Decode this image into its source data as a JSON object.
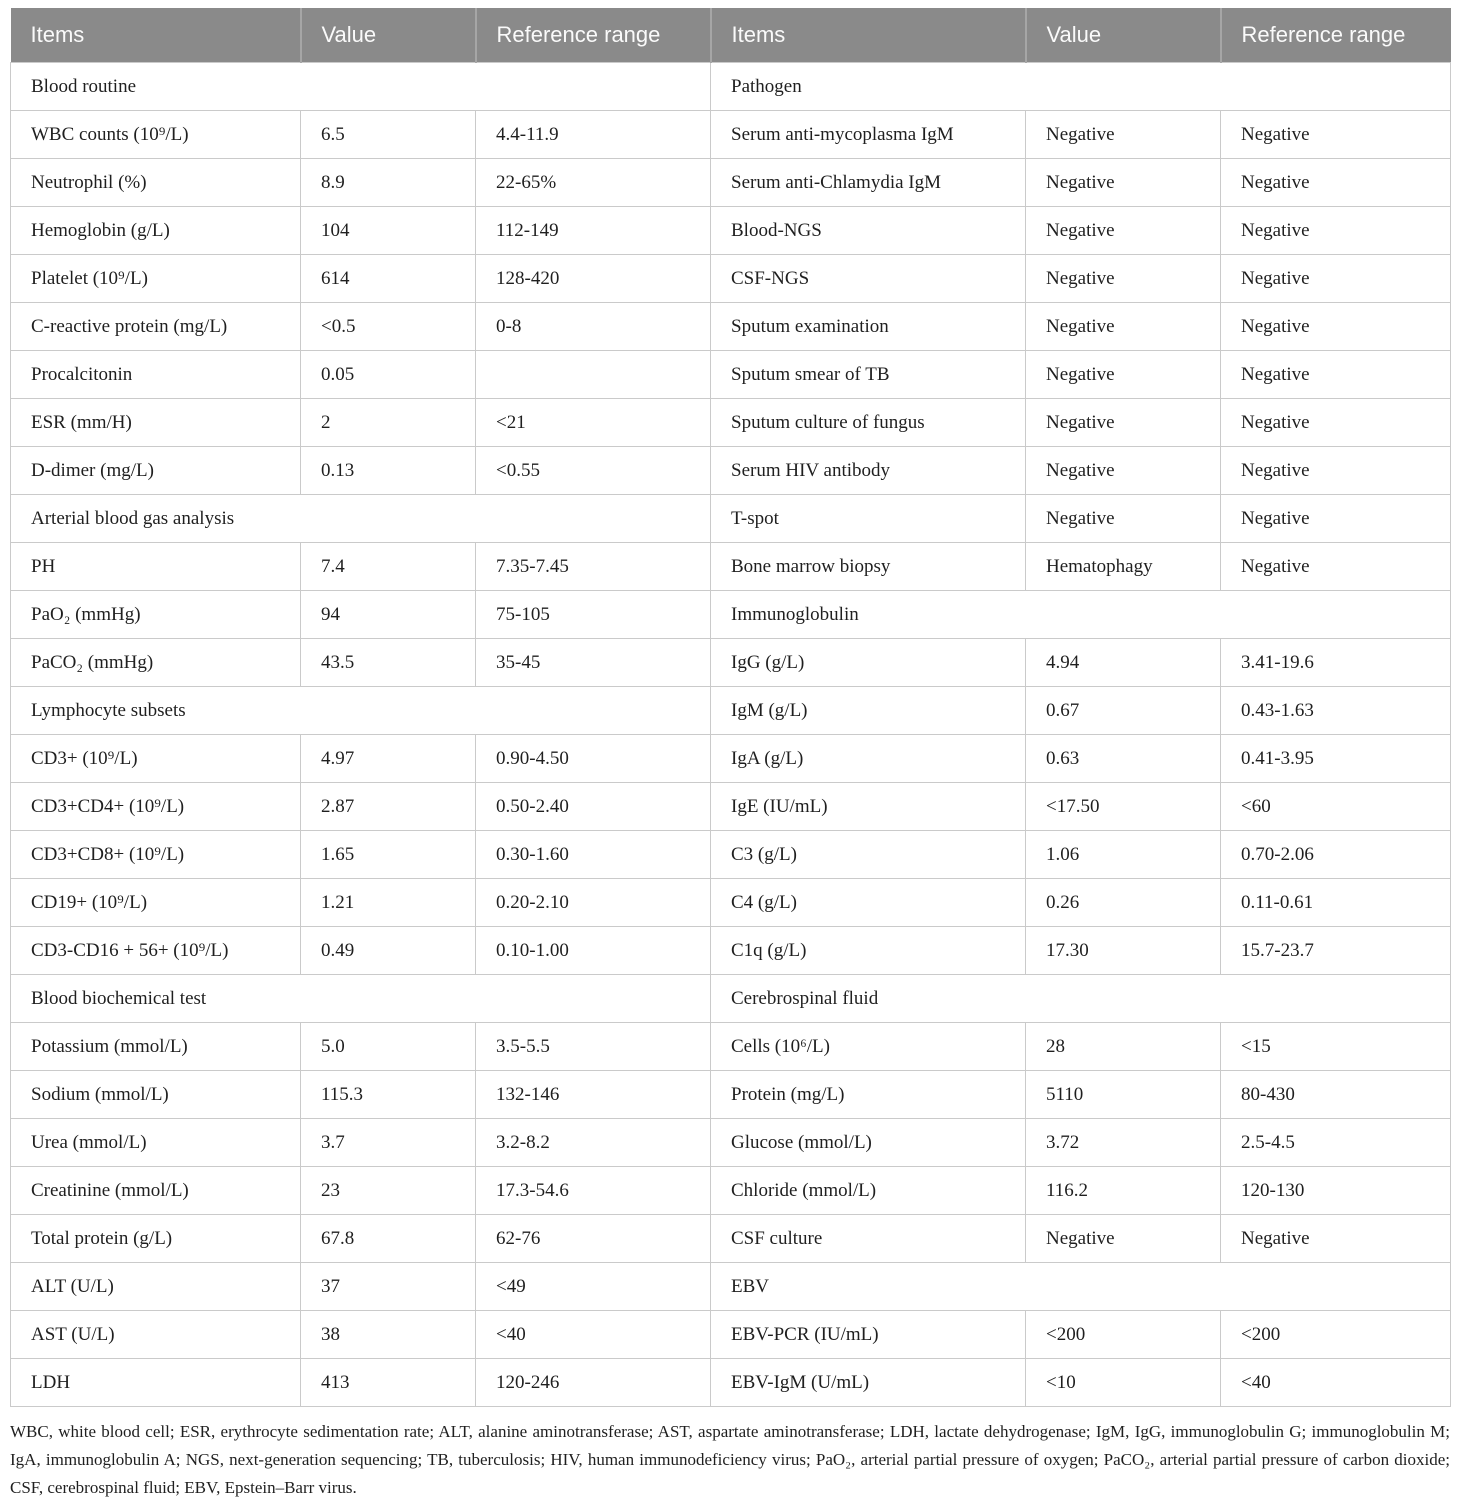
{
  "colors": {
    "header_bg": "#8a8a8a",
    "header_text": "#fafafa",
    "header_sep": "#a6a6a6",
    "grid_line": "#cacaca",
    "body_text": "#1f1f1f"
  },
  "header": {
    "items_left": "Items",
    "value_left": "Value",
    "ref_left": "Reference range",
    "items_right": "Items",
    "value_right": "Value",
    "ref_right": "Reference range"
  },
  "rows": [
    {
      "left": {
        "section": "Blood routine"
      },
      "right": {
        "section": "Pathogen"
      }
    },
    {
      "left": {
        "item": "WBC counts (10⁹/L)",
        "value": "6.5",
        "ref": "4.4-11.9"
      },
      "right": {
        "item": "Serum anti-mycoplasma IgM",
        "value": "Negative",
        "ref": "Negative"
      }
    },
    {
      "left": {
        "item": "Neutrophil (%)",
        "value": "8.9",
        "ref": "22-65%"
      },
      "right": {
        "item": "Serum anti-Chlamydia IgM",
        "value": "Negative",
        "ref": "Negative"
      }
    },
    {
      "left": {
        "item": "Hemoglobin (g/L)",
        "value": "104",
        "ref": "112-149"
      },
      "right": {
        "item": "Blood-NGS",
        "value": "Negative",
        "ref": "Negative"
      }
    },
    {
      "left": {
        "item": "Platelet (10⁹/L)",
        "value": "614",
        "ref": "128-420"
      },
      "right": {
        "item": "CSF-NGS",
        "value": "Negative",
        "ref": "Negative"
      }
    },
    {
      "left": {
        "item": "C-reactive protein (mg/L)",
        "value": "<0.5",
        "ref": "0-8"
      },
      "right": {
        "item": "Sputum examination",
        "value": "Negative",
        "ref": "Negative"
      }
    },
    {
      "left": {
        "item": "Procalcitonin",
        "value": "0.05",
        "ref": ""
      },
      "right": {
        "item": "Sputum smear of TB",
        "value": "Negative",
        "ref": "Negative"
      }
    },
    {
      "left": {
        "item": "ESR (mm/H)",
        "value": "2",
        "ref": "<21"
      },
      "right": {
        "item": "Sputum culture of fungus",
        "value": "Negative",
        "ref": "Negative"
      }
    },
    {
      "left": {
        "item": "D-dimer (mg/L)",
        "value": "0.13",
        "ref": "<0.55"
      },
      "right": {
        "item": "Serum HIV antibody",
        "value": "Negative",
        "ref": "Negative"
      }
    },
    {
      "left": {
        "section": "Arterial blood gas analysis"
      },
      "right": {
        "item": "T-spot",
        "value": "Negative",
        "ref": "Negative"
      }
    },
    {
      "left": {
        "item": "PH",
        "value": "7.4",
        "ref": "7.35-7.45"
      },
      "right": {
        "item": "Bone marrow biopsy",
        "value": "Hematophagy",
        "ref": "Negative"
      }
    },
    {
      "left": {
        "item": "PaO₂ (mmHg)",
        "value": "94",
        "ref": "75-105"
      },
      "right": {
        "section": "Immunoglobulin"
      }
    },
    {
      "left": {
        "item": "PaCO₂ (mmHg)",
        "value": "43.5",
        "ref": "35-45"
      },
      "right": {
        "item": "IgG (g/L)",
        "value": "4.94",
        "ref": "3.41-19.6"
      }
    },
    {
      "left": {
        "section": "Lymphocyte subsets"
      },
      "right": {
        "item": "IgM (g/L)",
        "value": "0.67",
        "ref": "0.43-1.63"
      }
    },
    {
      "left": {
        "item": "CD3+ (10⁹/L)",
        "value": "4.97",
        "ref": "0.90-4.50"
      },
      "right": {
        "item": "IgA (g/L)",
        "value": "0.63",
        "ref": "0.41-3.95"
      }
    },
    {
      "left": {
        "item": "CD3+CD4+ (10⁹/L)",
        "value": "2.87",
        "ref": "0.50-2.40"
      },
      "right": {
        "item": "IgE (IU/mL)",
        "value": "<17.50",
        "ref": "<60"
      }
    },
    {
      "left": {
        "item": "CD3+CD8+ (10⁹/L)",
        "value": "1.65",
        "ref": "0.30-1.60"
      },
      "right": {
        "item": "C3 (g/L)",
        "value": "1.06",
        "ref": "0.70-2.06"
      }
    },
    {
      "left": {
        "item": "CD19+ (10⁹/L)",
        "value": "1.21",
        "ref": "0.20-2.10"
      },
      "right": {
        "item": "C4 (g/L)",
        "value": "0.26",
        "ref": "0.11-0.61"
      }
    },
    {
      "left": {
        "item": "CD3-CD16 + 56+ (10⁹/L)",
        "value": "0.49",
        "ref": "0.10-1.00"
      },
      "right": {
        "item": "C1q (g/L)",
        "value": "17.30",
        "ref": "15.7-23.7"
      }
    },
    {
      "left": {
        "section": "Blood biochemical test"
      },
      "right": {
        "section": "Cerebrospinal fluid"
      }
    },
    {
      "left": {
        "item": "Potassium (mmol/L)",
        "value": "5.0",
        "ref": "3.5-5.5"
      },
      "right": {
        "item": "Cells (10⁶/L)",
        "value": "28",
        "ref": "<15"
      }
    },
    {
      "left": {
        "item": "Sodium (mmol/L)",
        "value": "115.3",
        "ref": "132-146"
      },
      "right": {
        "item": "Protein (mg/L)",
        "value": "5110",
        "ref": "80-430"
      }
    },
    {
      "left": {
        "item": "Urea (mmol/L)",
        "value": "3.7",
        "ref": "3.2-8.2"
      },
      "right": {
        "item": "Glucose (mmol/L)",
        "value": "3.72",
        "ref": "2.5-4.5"
      }
    },
    {
      "left": {
        "item": "Creatinine (mmol/L)",
        "value": "23",
        "ref": "17.3-54.6"
      },
      "right": {
        "item": "Chloride (mmol/L)",
        "value": "116.2",
        "ref": "120-130"
      }
    },
    {
      "left": {
        "item": "Total protein (g/L)",
        "value": "67.8",
        "ref": "62-76"
      },
      "right": {
        "item": "CSF culture",
        "value": "Negative",
        "ref": "Negative"
      }
    },
    {
      "left": {
        "item": "ALT (U/L)",
        "value": "37",
        "ref": "<49"
      },
      "right": {
        "section": "EBV"
      }
    },
    {
      "left": {
        "item": "AST (U/L)",
        "value": "38",
        "ref": "<40"
      },
      "right": {
        "item": "EBV-PCR (IU/mL)",
        "value": "<200",
        "ref": "<200"
      }
    },
    {
      "left": {
        "item": "LDH",
        "value": "413",
        "ref": "120-246"
      },
      "right": {
        "item": "EBV-IgM (U/mL)",
        "value": "<10",
        "ref": "<40"
      }
    }
  ],
  "footnote": "WBC, white blood cell; ESR, erythrocyte sedimentation rate; ALT, alanine aminotransferase; AST, aspartate aminotransferase; LDH, lactate dehydrogenase; IgM, IgG, immunoglobulin G; immunoglobulin M; IgA, immunoglobulin A; NGS, next-generation sequencing; TB, tuberculosis; HIV, human immunodeficiency virus; PaO₂, arterial partial pressure of oxygen; PaCO₂, arterial partial pressure of carbon dioxide; CSF, cerebrospinal fluid; EBV, Epstein–Barr virus."
}
